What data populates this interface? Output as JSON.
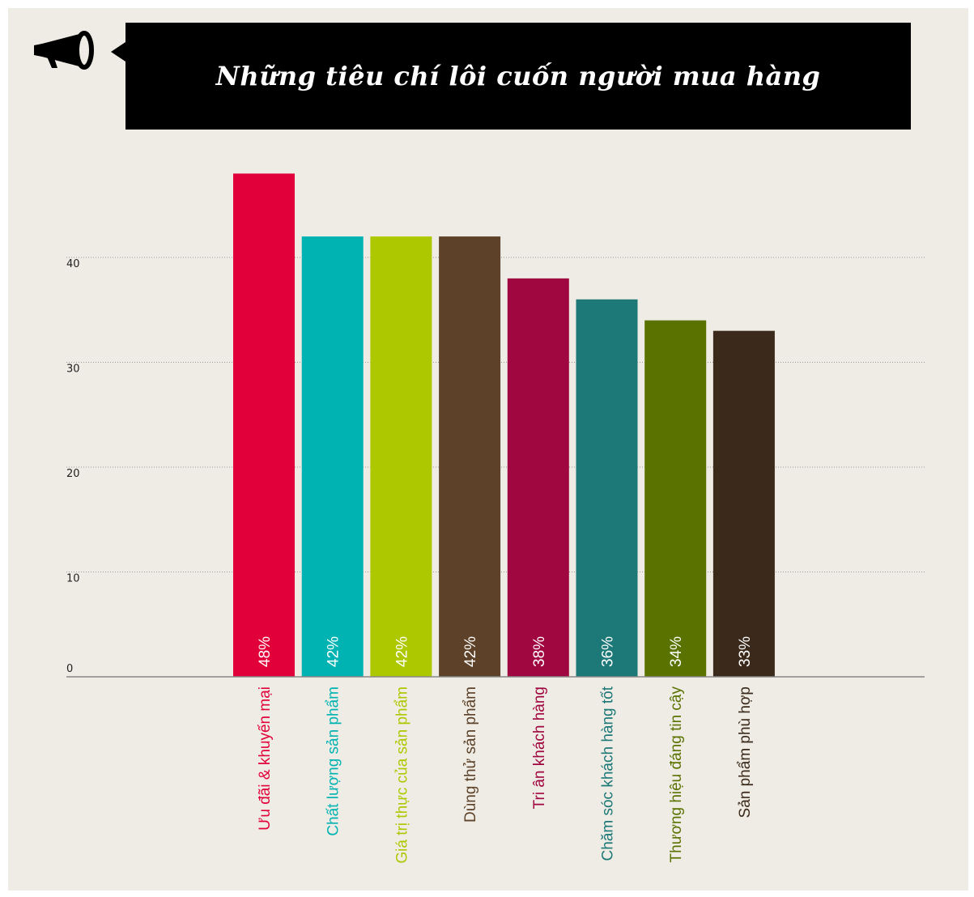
{
  "title": "Những tiêu chí lôi cuốn người mua hàng",
  "icon": "megaphone-icon",
  "chart_data": {
    "type": "bar",
    "title": "Những tiêu chí lôi cuốn người mua hàng",
    "xlabel": "",
    "ylabel": "",
    "ylim": [
      0,
      40
    ],
    "yticks": [
      "0",
      "10",
      "20",
      "30",
      "40"
    ],
    "grid": true,
    "categories": [
      "Ưu đãi & khuyến mại",
      "Chất lượng sản phẩm",
      "Giá trị thực của sản phẩm",
      "Dùng thử sản phẩm",
      "Tri ân khách hàng",
      "Chăm sóc khách hàng tốt",
      "Thương hiệu đáng tin cậy",
      "Sản phẩm phù hợp"
    ],
    "values": [
      48,
      42,
      42,
      42,
      38,
      36,
      34,
      33
    ],
    "data_labels": [
      "48%",
      "42%",
      "42%",
      "42%",
      "38%",
      "36%",
      "34%",
      "33%"
    ],
    "colors": [
      "#e2003a",
      "#00b3b3",
      "#aec800",
      "#5d4128",
      "#a00640",
      "#1d7878",
      "#5a7200",
      "#3b2a1b"
    ]
  }
}
